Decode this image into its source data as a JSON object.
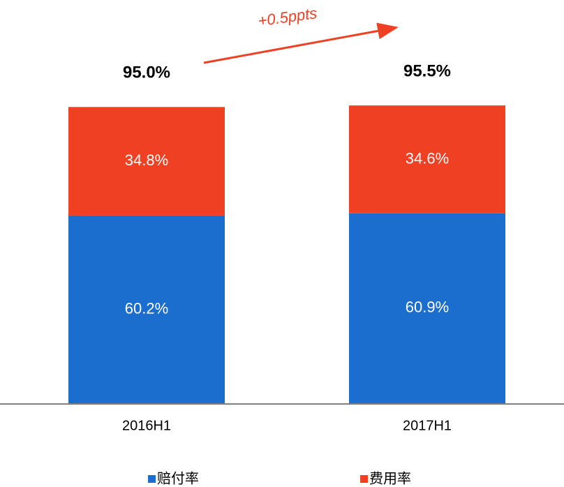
{
  "chart_data": {
    "type": "stacked_bar",
    "categories": [
      "2016H1",
      "2017H1"
    ],
    "series": [
      {
        "name": "赔付率",
        "color": "#1b6ecd",
        "values": [
          60.2,
          60.9
        ],
        "value_labels": [
          "60.2%",
          "60.9%"
        ]
      },
      {
        "name": "费用率",
        "color": "#f04024",
        "values": [
          34.8,
          34.6
        ],
        "value_labels": [
          "34.8%",
          "34.6%"
        ]
      }
    ],
    "totals": [
      95.0,
      95.5
    ],
    "total_labels": [
      "95.0%",
      "95.5%"
    ],
    "annotation": "+0.5ppts"
  }
}
